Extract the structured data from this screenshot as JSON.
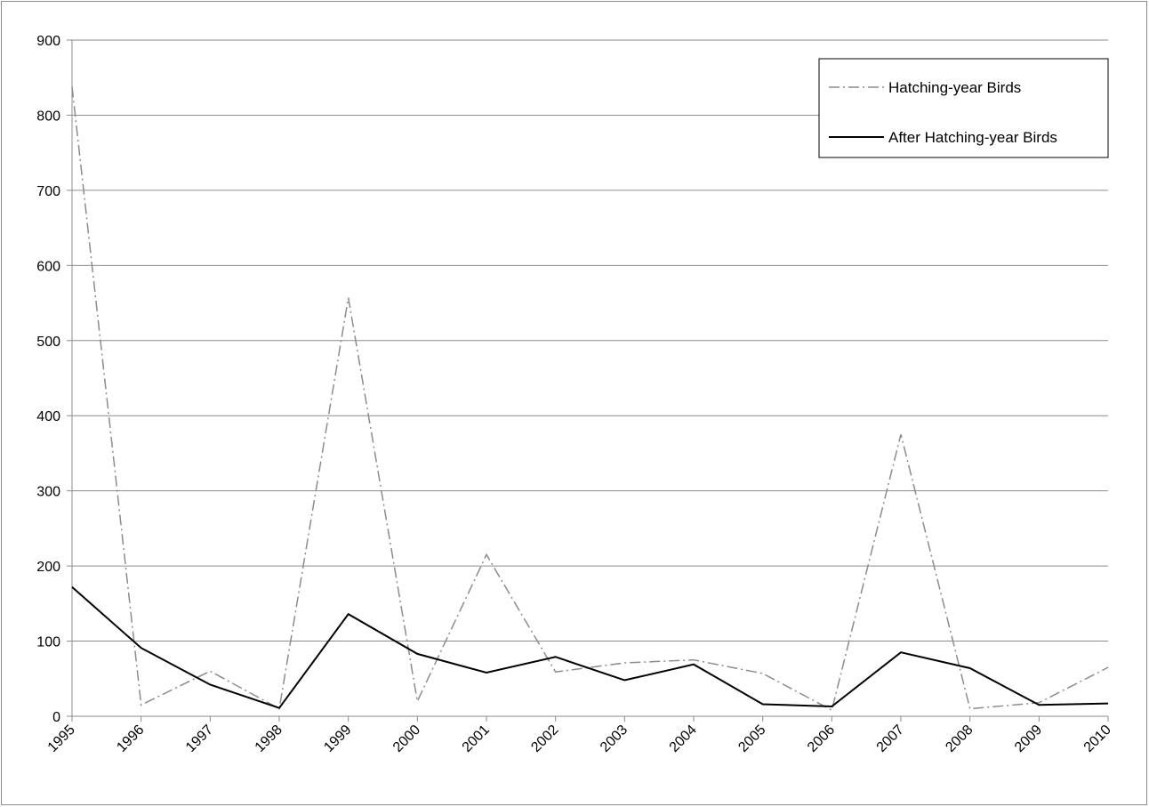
{
  "chart_data": {
    "type": "line",
    "title": "",
    "xlabel": "",
    "ylabel": "",
    "x": [
      "1995",
      "1996",
      "1997",
      "1998",
      "1999",
      "2000",
      "2001",
      "2002",
      "2003",
      "2004",
      "2005",
      "2006",
      "2007",
      "2008",
      "2009",
      "2010"
    ],
    "ylim": [
      0,
      900
    ],
    "yticks": [
      "0",
      "100",
      "200",
      "300",
      "400",
      "500",
      "600",
      "700",
      "800",
      "900"
    ],
    "grid": "horizontal",
    "legend_position": "top-right",
    "series": [
      {
        "name": "Hatching-year Birds",
        "style": "dash-dot",
        "color": "#8c8c8c",
        "values": [
          838,
          15,
          60,
          10,
          557,
          20,
          215,
          59,
          71,
          75,
          57,
          8,
          375,
          10,
          18,
          65
        ]
      },
      {
        "name": "After Hatching-year Birds",
        "style": "solid",
        "color": "#000000",
        "values": [
          172,
          91,
          42,
          11,
          136,
          83,
          58,
          79,
          48,
          69,
          16,
          13,
          85,
          64,
          15,
          17
        ]
      }
    ]
  }
}
